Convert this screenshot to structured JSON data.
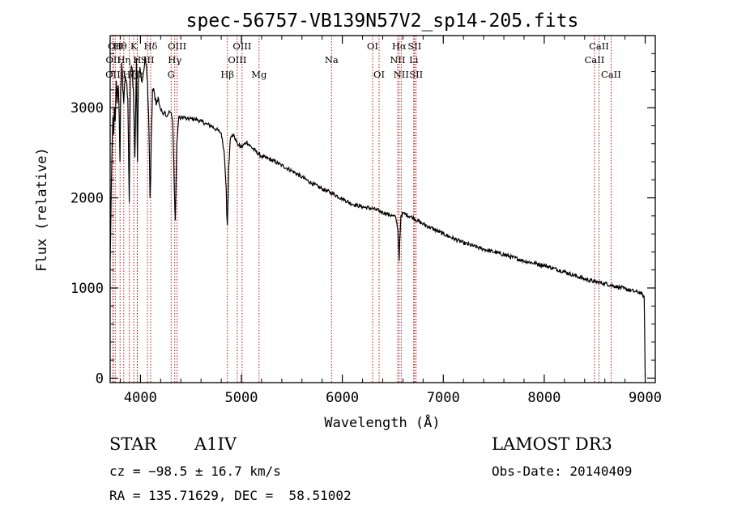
{
  "chart_data": {
    "type": "line",
    "title": "spec-56757-VB139N57V2_sp14-205.fits",
    "xlabel": "Wavelength (Å)",
    "ylabel": "Flux (relative)",
    "xlim": [
      3700,
      9100
    ],
    "ylim": [
      -50,
      3800
    ],
    "xticks": [
      4000,
      5000,
      6000,
      7000,
      8000,
      9000
    ],
    "yticks": [
      0,
      1000,
      2000,
      3000
    ],
    "grid": false,
    "series": [
      {
        "name": "flux",
        "x": [
          3700,
          3705,
          3710,
          3716,
          3722,
          3728,
          3735,
          3742,
          3750,
          3760,
          3770,
          3780,
          3790,
          3797,
          3805,
          3815,
          3825,
          3835,
          3850,
          3860,
          3875,
          3889,
          3900,
          3915,
          3930,
          3945,
          3960,
          3970,
          3980,
          3995,
          4010,
          4030,
          4050,
          4070,
          4085,
          4095,
          4101,
          4108,
          4120,
          4140,
          4160,
          4180,
          4200,
          4220,
          4240,
          4260,
          4280,
          4300,
          4320,
          4330,
          4340,
          4345,
          4350,
          4360,
          4380,
          4400,
          4430,
          4460,
          4500,
          4550,
          4600,
          4650,
          4700,
          4750,
          4800,
          4830,
          4850,
          4855,
          4861,
          4866,
          4875,
          4890,
          4910,
          4930,
          4960,
          5000,
          5050,
          5100,
          5200,
          5300,
          5400,
          5500,
          5600,
          5700,
          5800,
          5900,
          6000,
          6100,
          6200,
          6300,
          6400,
          6450,
          6500,
          6530,
          6550,
          6558,
          6563,
          6568,
          6580,
          6600,
          6700,
          6800,
          7000,
          7200,
          7400,
          7600,
          7800,
          8000,
          8200,
          8400,
          8500,
          8600,
          8700,
          8800,
          8900,
          8950,
          8990,
          9000
        ],
        "y": [
          1300,
          1600,
          2000,
          2400,
          2700,
          2900,
          2700,
          3000,
          2850,
          3300,
          3050,
          3250,
          2900,
          2400,
          3200,
          3500,
          3200,
          3050,
          3350,
          3300,
          3100,
          1950,
          3350,
          3450,
          3200,
          2450,
          3550,
          2400,
          3300,
          3450,
          3300,
          3400,
          3550,
          3300,
          2700,
          2000,
          2200,
          2700,
          3200,
          3150,
          3050,
          3100,
          2980,
          2940,
          2960,
          2900,
          2950,
          2950,
          2850,
          2400,
          1900,
          1750,
          2000,
          2600,
          2900,
          2880,
          2900,
          2870,
          2880,
          2870,
          2850,
          2820,
          2800,
          2760,
          2720,
          2500,
          2100,
          1820,
          1700,
          1900,
          2350,
          2650,
          2700,
          2680,
          2600,
          2560,
          2620,
          2560,
          2460,
          2420,
          2360,
          2300,
          2230,
          2160,
          2100,
          2050,
          1990,
          1930,
          1900,
          1880,
          1840,
          1820,
          1800,
          1780,
          1650,
          1450,
          1300,
          1500,
          1800,
          1830,
          1780,
          1710,
          1600,
          1500,
          1430,
          1370,
          1300,
          1250,
          1180,
          1100,
          1070,
          1050,
          1020,
          990,
          960,
          950,
          900,
          20
        ]
      }
    ],
    "line_markers": [
      {
        "wavelength": 3727,
        "label": "OII",
        "row": 3
      },
      {
        "wavelength": 3730,
        "label": "OII",
        "row": 2
      },
      {
        "wavelength": 3750,
        "label": "OII",
        "row": 1
      },
      {
        "wavelength": 3798,
        "label": "Hθ",
        "row": 1
      },
      {
        "wavelength": 3835,
        "label": "Hη",
        "row": 2
      },
      {
        "wavelength": 3889,
        "label": "Hζ",
        "row": 3
      },
      {
        "wavelength": 3934,
        "label": "K",
        "row": 1
      },
      {
        "wavelength": 3968,
        "label": "H",
        "row": 2
      },
      {
        "wavelength": 3970,
        "label": "Hε",
        "row": 3
      },
      {
        "wavelength": 4101,
        "label": "Hδ",
        "row": 1
      },
      {
        "wavelength": 4070,
        "label": "SII",
        "row": 2
      },
      {
        "wavelength": 4304,
        "label": "G",
        "row": 3
      },
      {
        "wavelength": 4340,
        "label": "Hγ",
        "row": 2
      },
      {
        "wavelength": 4363,
        "label": "OIII",
        "row": 1
      },
      {
        "wavelength": 4861,
        "label": "Hβ",
        "row": 3
      },
      {
        "wavelength": 4959,
        "label": "OIII",
        "row": 2
      },
      {
        "wavelength": 5007,
        "label": "OIII",
        "row": 1
      },
      {
        "wavelength": 5175,
        "label": "Mg",
        "row": 3
      },
      {
        "wavelength": 5893,
        "label": "Na",
        "row": 2
      },
      {
        "wavelength": 6300,
        "label": "OI",
        "row": 1
      },
      {
        "wavelength": 6364,
        "label": "OI",
        "row": 3
      },
      {
        "wavelength": 6548,
        "label": "NII",
        "row": 2
      },
      {
        "wavelength": 6563,
        "label": "Hα",
        "row": 1
      },
      {
        "wavelength": 6583,
        "label": "NII",
        "row": 3
      },
      {
        "wavelength": 6707,
        "label": "Li",
        "row": 2
      },
      {
        "wavelength": 6716,
        "label": "SII",
        "row": 1
      },
      {
        "wavelength": 6731,
        "label": "SII",
        "row": 3
      },
      {
        "wavelength": 8498,
        "label": "CaII",
        "row": 2
      },
      {
        "wavelength": 8542,
        "label": "CaII",
        "row": 1
      },
      {
        "wavelength": 8662,
        "label": "CaII",
        "row": 3
      }
    ]
  },
  "footer": {
    "object_type": "STAR",
    "subclass": "A1IV",
    "survey": "LAMOST DR3",
    "cz": "cz = −98.5 ± 16.7 km/s",
    "obs_date": "Obs-Date: 20140409",
    "coords": "RA = 135.71629, DEC =  58.51002"
  }
}
